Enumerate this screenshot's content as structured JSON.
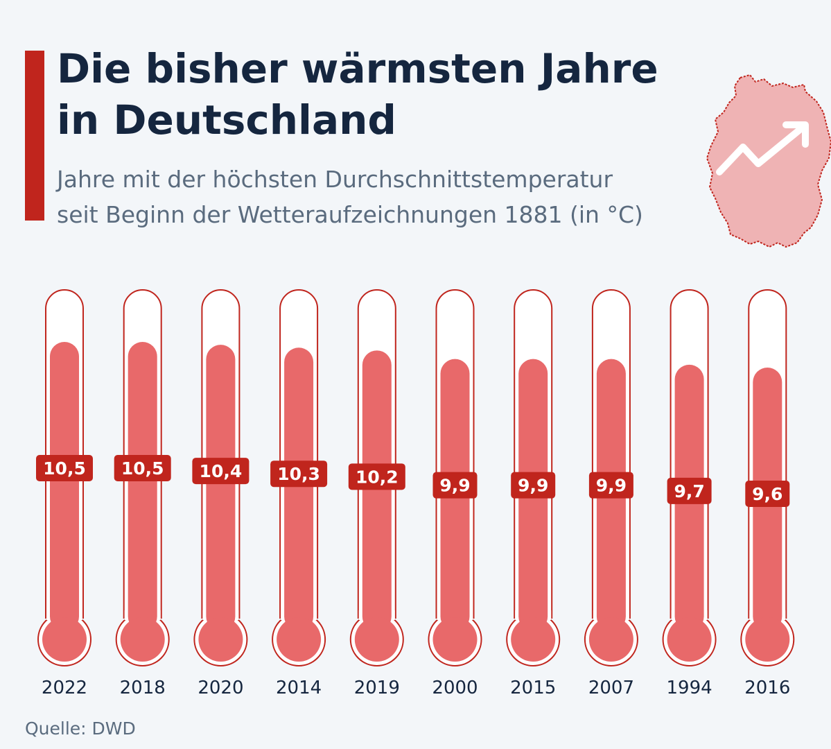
{
  "header": {
    "title": "Die bisher wärmsten Jahre\nin Deutschland",
    "subtitle": "Jahre mit der höchsten Durchschnittstemperatur\nseit Beginn der Wetteraufzeichnungen 1881 (in °C)"
  },
  "footer": {
    "source": "Quelle: DWD"
  },
  "icons": {
    "map": "germany-map-icon",
    "trend": "trend-up-arrow-icon"
  },
  "colors": {
    "accent": "#c0251d",
    "fill": "#e8696a",
    "tube_outline": "#c0251d",
    "label_bg": "#c0251d",
    "map_fill": "#efb3b4"
  },
  "chart_data": {
    "type": "bar",
    "title": "Die bisher wärmsten Jahre in Deutschland",
    "categories": [
      "2022",
      "2018",
      "2020",
      "2014",
      "2019",
      "2000",
      "2015",
      "2007",
      "1994",
      "2016"
    ],
    "values": [
      10.5,
      10.5,
      10.4,
      10.3,
      10.2,
      9.9,
      9.9,
      9.9,
      9.7,
      9.6
    ],
    "value_labels": [
      "10,5",
      "10,5",
      "10,4",
      "10,3",
      "10,2",
      "9,9",
      "9,9",
      "9,9",
      "9,7",
      "9,6"
    ],
    "unit": "°C",
    "grid": false,
    "legend": "none"
  }
}
